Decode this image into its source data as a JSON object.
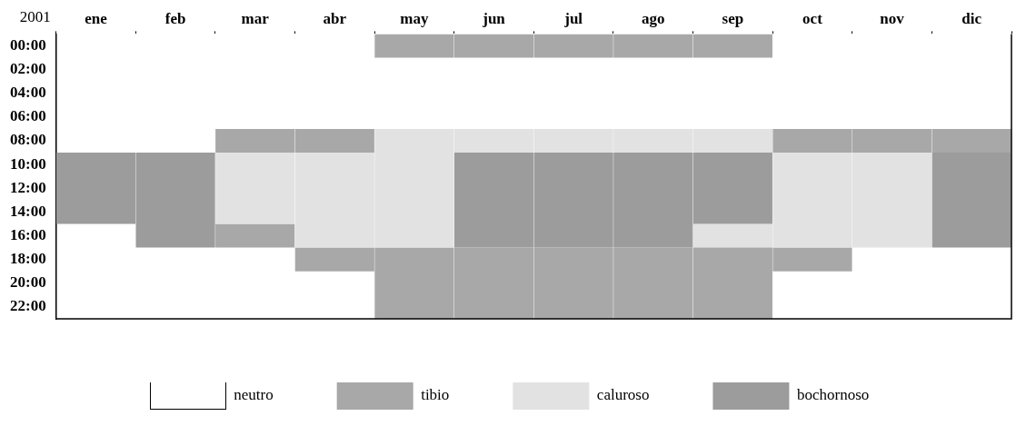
{
  "chart_data": {
    "type": "bar",
    "title": "2001",
    "categories": [
      "ene",
      "feb",
      "mar",
      "abr",
      "may",
      "jun",
      "jul",
      "ago",
      "sep",
      "oct",
      "nov",
      "dic"
    ],
    "ylim": [
      23,
      -1
    ],
    "yticks": [
      {
        "value": 0,
        "label": "00:00"
      },
      {
        "value": 2,
        "label": "02:00"
      },
      {
        "value": 4,
        "label": "04:00"
      },
      {
        "value": 6,
        "label": "06:00"
      },
      {
        "value": 8,
        "label": "08:00"
      },
      {
        "value": 10,
        "label": "10:00"
      },
      {
        "value": 12,
        "label": "12:00"
      },
      {
        "value": 14,
        "label": "14:00"
      },
      {
        "value": 16,
        "label": "16:00"
      },
      {
        "value": 18,
        "label": "18:00"
      },
      {
        "value": 20,
        "label": "20:00"
      },
      {
        "value": 22,
        "label": "22:00"
      }
    ],
    "legend": "bottom",
    "annotations": [
      "neutro"
    ],
    "series": [
      {
        "name": "tibio",
        "color": "#a8a8a8",
        "base": [
          null,
          null,
          7,
          7,
          -1,
          -1,
          -1,
          -1,
          -1,
          7,
          7,
          7
        ],
        "values": [
          null,
          null,
          2,
          2,
          2,
          2,
          2,
          2,
          2,
          2,
          2,
          2
        ]
      },
      {
        "name": "caluroso",
        "color": "#e2e2e2",
        "base": [
          null,
          null,
          9,
          9,
          7,
          7,
          7,
          7,
          7,
          9,
          9,
          null
        ],
        "values": [
          null,
          null,
          6,
          8,
          10,
          2,
          2,
          2,
          2,
          8,
          8,
          null
        ]
      },
      {
        "name": "bochornoso",
        "color": "#9c9c9c",
        "base": [
          9,
          9,
          null,
          null,
          null,
          9,
          9,
          9,
          9,
          null,
          null,
          9
        ],
        "values": [
          6,
          8,
          null,
          null,
          null,
          8,
          8,
          8,
          6,
          null,
          null,
          8
        ]
      },
      {
        "color": "#a8a8a8",
        "base": [
          null,
          null,
          15,
          17,
          17,
          17,
          17,
          17,
          17,
          17,
          null,
          null
        ],
        "values": [
          null,
          null,
          2,
          2,
          6,
          6,
          6,
          6,
          6,
          2,
          null,
          null
        ]
      },
      {
        "color": "#e2e2e2",
        "base": [
          null,
          null,
          null,
          null,
          null,
          null,
          null,
          null,
          15,
          null,
          null,
          null
        ],
        "values": [
          null,
          null,
          null,
          null,
          null,
          null,
          null,
          null,
          2,
          null,
          null,
          null
        ]
      }
    ]
  }
}
